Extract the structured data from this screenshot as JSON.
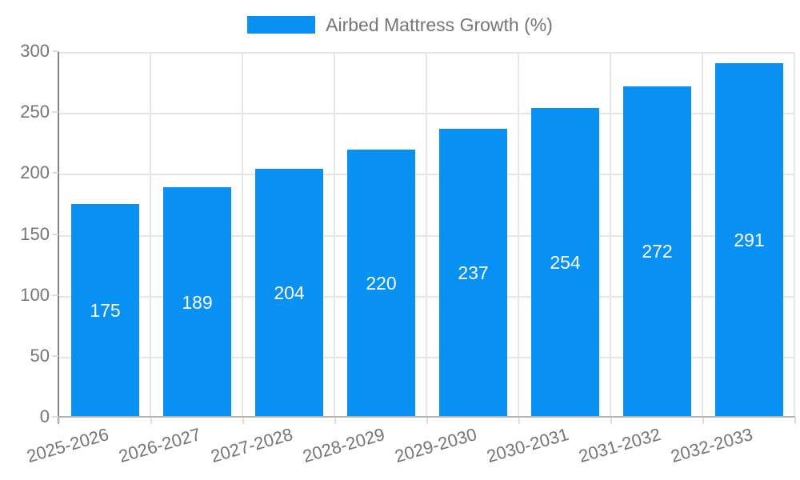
{
  "chart_data": {
    "type": "bar",
    "title": "",
    "legend_position": "top",
    "categories": [
      "2025-2026",
      "2026-2027",
      "2027-2028",
      "2028-2029",
      "2029-2030",
      "2030-2031",
      "2031-2032",
      "2032-2033"
    ],
    "series": [
      {
        "name": "Airbed Mattress Growth (%)",
        "values": [
          175,
          189,
          204,
          220,
          237,
          254,
          272,
          291
        ]
      }
    ],
    "xlabel": "",
    "ylabel": "",
    "ylim": [
      0,
      300
    ],
    "yticks": [
      0,
      50,
      100,
      150,
      200,
      250,
      300
    ],
    "grid": true,
    "value_labels_inside_bars": true,
    "colors": {
      "bar": "#0890F2",
      "value_label": "#FFFFFF",
      "axis_text": "#757575",
      "gridline": "#E6E6E6",
      "y_axis_line": "#828282",
      "x_axis_line": "#B3B3B3",
      "tick": "#DDDDDD",
      "background": "#FFFFFF"
    }
  }
}
